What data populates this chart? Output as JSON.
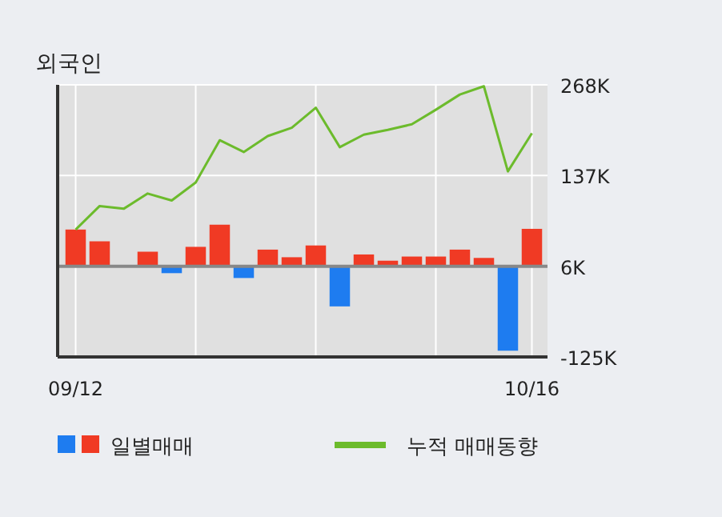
{
  "chart_data": {
    "type": "bar",
    "title": "외국인",
    "categories": [
      "09/12",
      null,
      null,
      null,
      null,
      null,
      null,
      null,
      null,
      null,
      null,
      null,
      null,
      null,
      null,
      null,
      null,
      null,
      null,
      "10/16"
    ],
    "series": [
      {
        "name": "일별매매",
        "colors": [
          "#f03a24",
          "#f03a24",
          null,
          "#f03a24",
          "#1e7cf0",
          "#f03a24",
          "#f03a24",
          "#1e7cf0",
          "#f03a24",
          "#f03a24",
          "#f03a24",
          "#1e7cf0",
          "#f03a24",
          "#f03a24",
          "#f03a24",
          "#f03a24",
          "#f03a24",
          "#f03a24",
          "#1e7cf0",
          "#f03a24"
        ],
        "base": [
          6,
          6,
          null,
          6,
          6,
          6,
          6,
          6,
          6,
          6,
          6,
          6,
          6,
          6,
          6,
          6,
          6,
          6,
          6,
          6
        ],
        "values": [
          53,
          36,
          null,
          21,
          -10,
          28,
          60,
          -17,
          24,
          13,
          30,
          -58,
          17,
          8,
          14,
          14,
          24,
          12,
          -122,
          54
        ]
      },
      {
        "name": "누적 매매동향",
        "type": "line",
        "color": "#6cbb2c",
        "values": [
          59,
          93,
          89,
          111,
          101,
          127,
          188,
          171,
          194,
          206,
          235,
          178,
          196,
          203,
          211,
          232,
          254,
          266,
          143,
          198
        ]
      }
    ],
    "ylim": [
      -125,
      268
    ],
    "yticks": [
      {
        "value": 268,
        "label": "268K"
      },
      {
        "value": 137,
        "label": "137K"
      },
      {
        "value": 6,
        "label": "6K"
      },
      {
        "value": -125,
        "label": "-125K"
      }
    ],
    "ref_lines": [
      {
        "axis": "y",
        "value": 6,
        "color": "#888888"
      }
    ],
    "grid": true,
    "legend": "bottom"
  }
}
